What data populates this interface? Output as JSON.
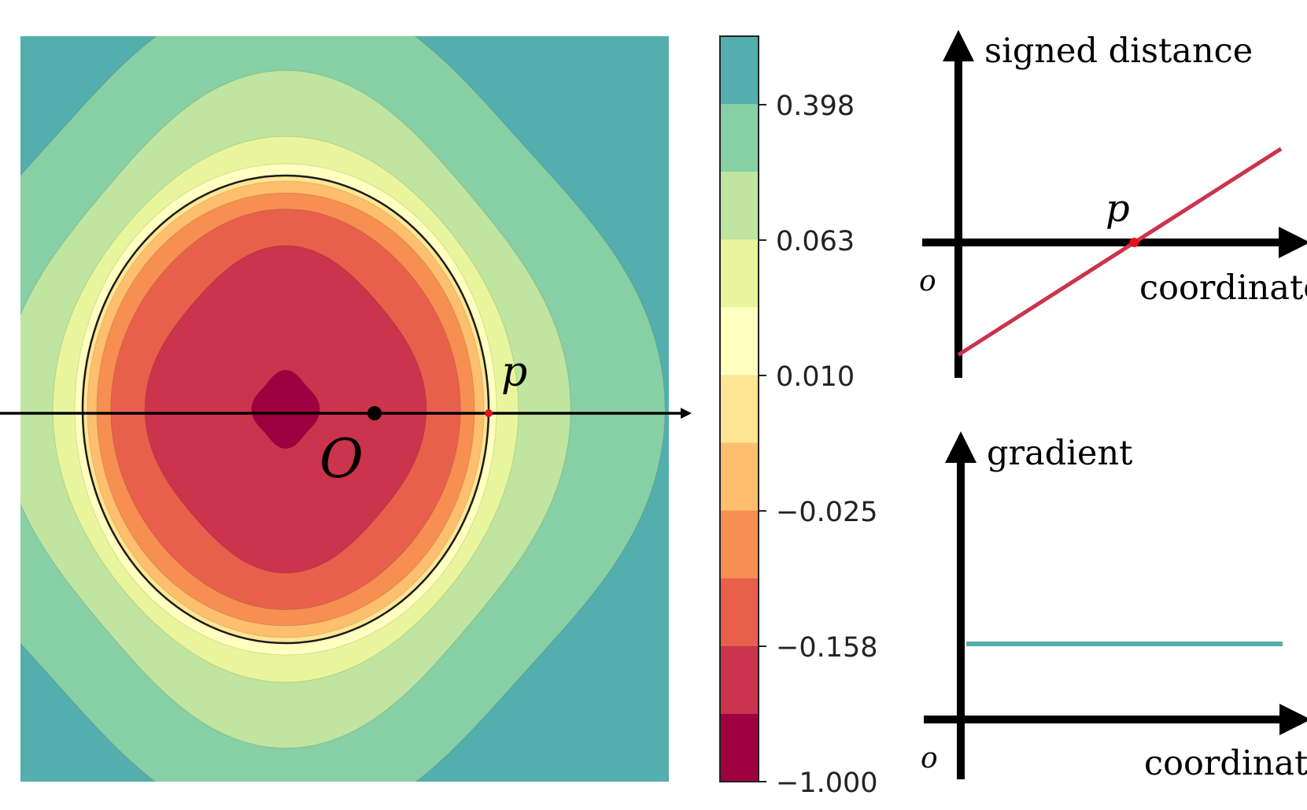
{
  "contour_map": {
    "origin_label": "O",
    "point_label": "p",
    "level_colors": [
      "#9e0142",
      "#cc334c",
      "#e8604c",
      "#f78e52",
      "#fdbe6e",
      "#fee593",
      "#ffffbf",
      "#e9f59c",
      "#bfe5a0",
      "#87cfa4",
      "#54aead"
    ],
    "zero_contour_color": "#000000"
  },
  "colorbar": {
    "ticks": [
      "0.398",
      "0.063",
      "0.010",
      "−0.025",
      "−0.158",
      "−1.000"
    ],
    "colors_top_to_bottom": [
      "#54aead",
      "#87cfa4",
      "#bfe5a0",
      "#e9f59c",
      "#ffffbf",
      "#fee593",
      "#fdbe6e",
      "#f78e52",
      "#e8604c",
      "#cc334c",
      "#9e0142"
    ]
  },
  "chart_data": [
    {
      "type": "line",
      "title": "",
      "ylabel": "signed distance",
      "xlabel": "coordinate",
      "origin_label": "o",
      "point_label": "p",
      "x_range": [
        0,
        1
      ],
      "y_range": [
        -0.6,
        0.6
      ],
      "series": [
        {
          "name": "signed distance",
          "color": "#cc334c",
          "x": [
            0,
            1
          ],
          "y": [
            -0.6,
            0.5
          ]
        }
      ],
      "zero_crossing": 0.545
    },
    {
      "type": "line",
      "title": "",
      "ylabel": "gradient",
      "xlabel": "coordinate",
      "origin_label": "o",
      "x_range": [
        0,
        1
      ],
      "y_range": [
        0,
        1.6
      ],
      "series": [
        {
          "name": "gradient",
          "color": "#54aead",
          "x": [
            0,
            1
          ],
          "y": [
            1,
            1
          ]
        }
      ]
    }
  ]
}
